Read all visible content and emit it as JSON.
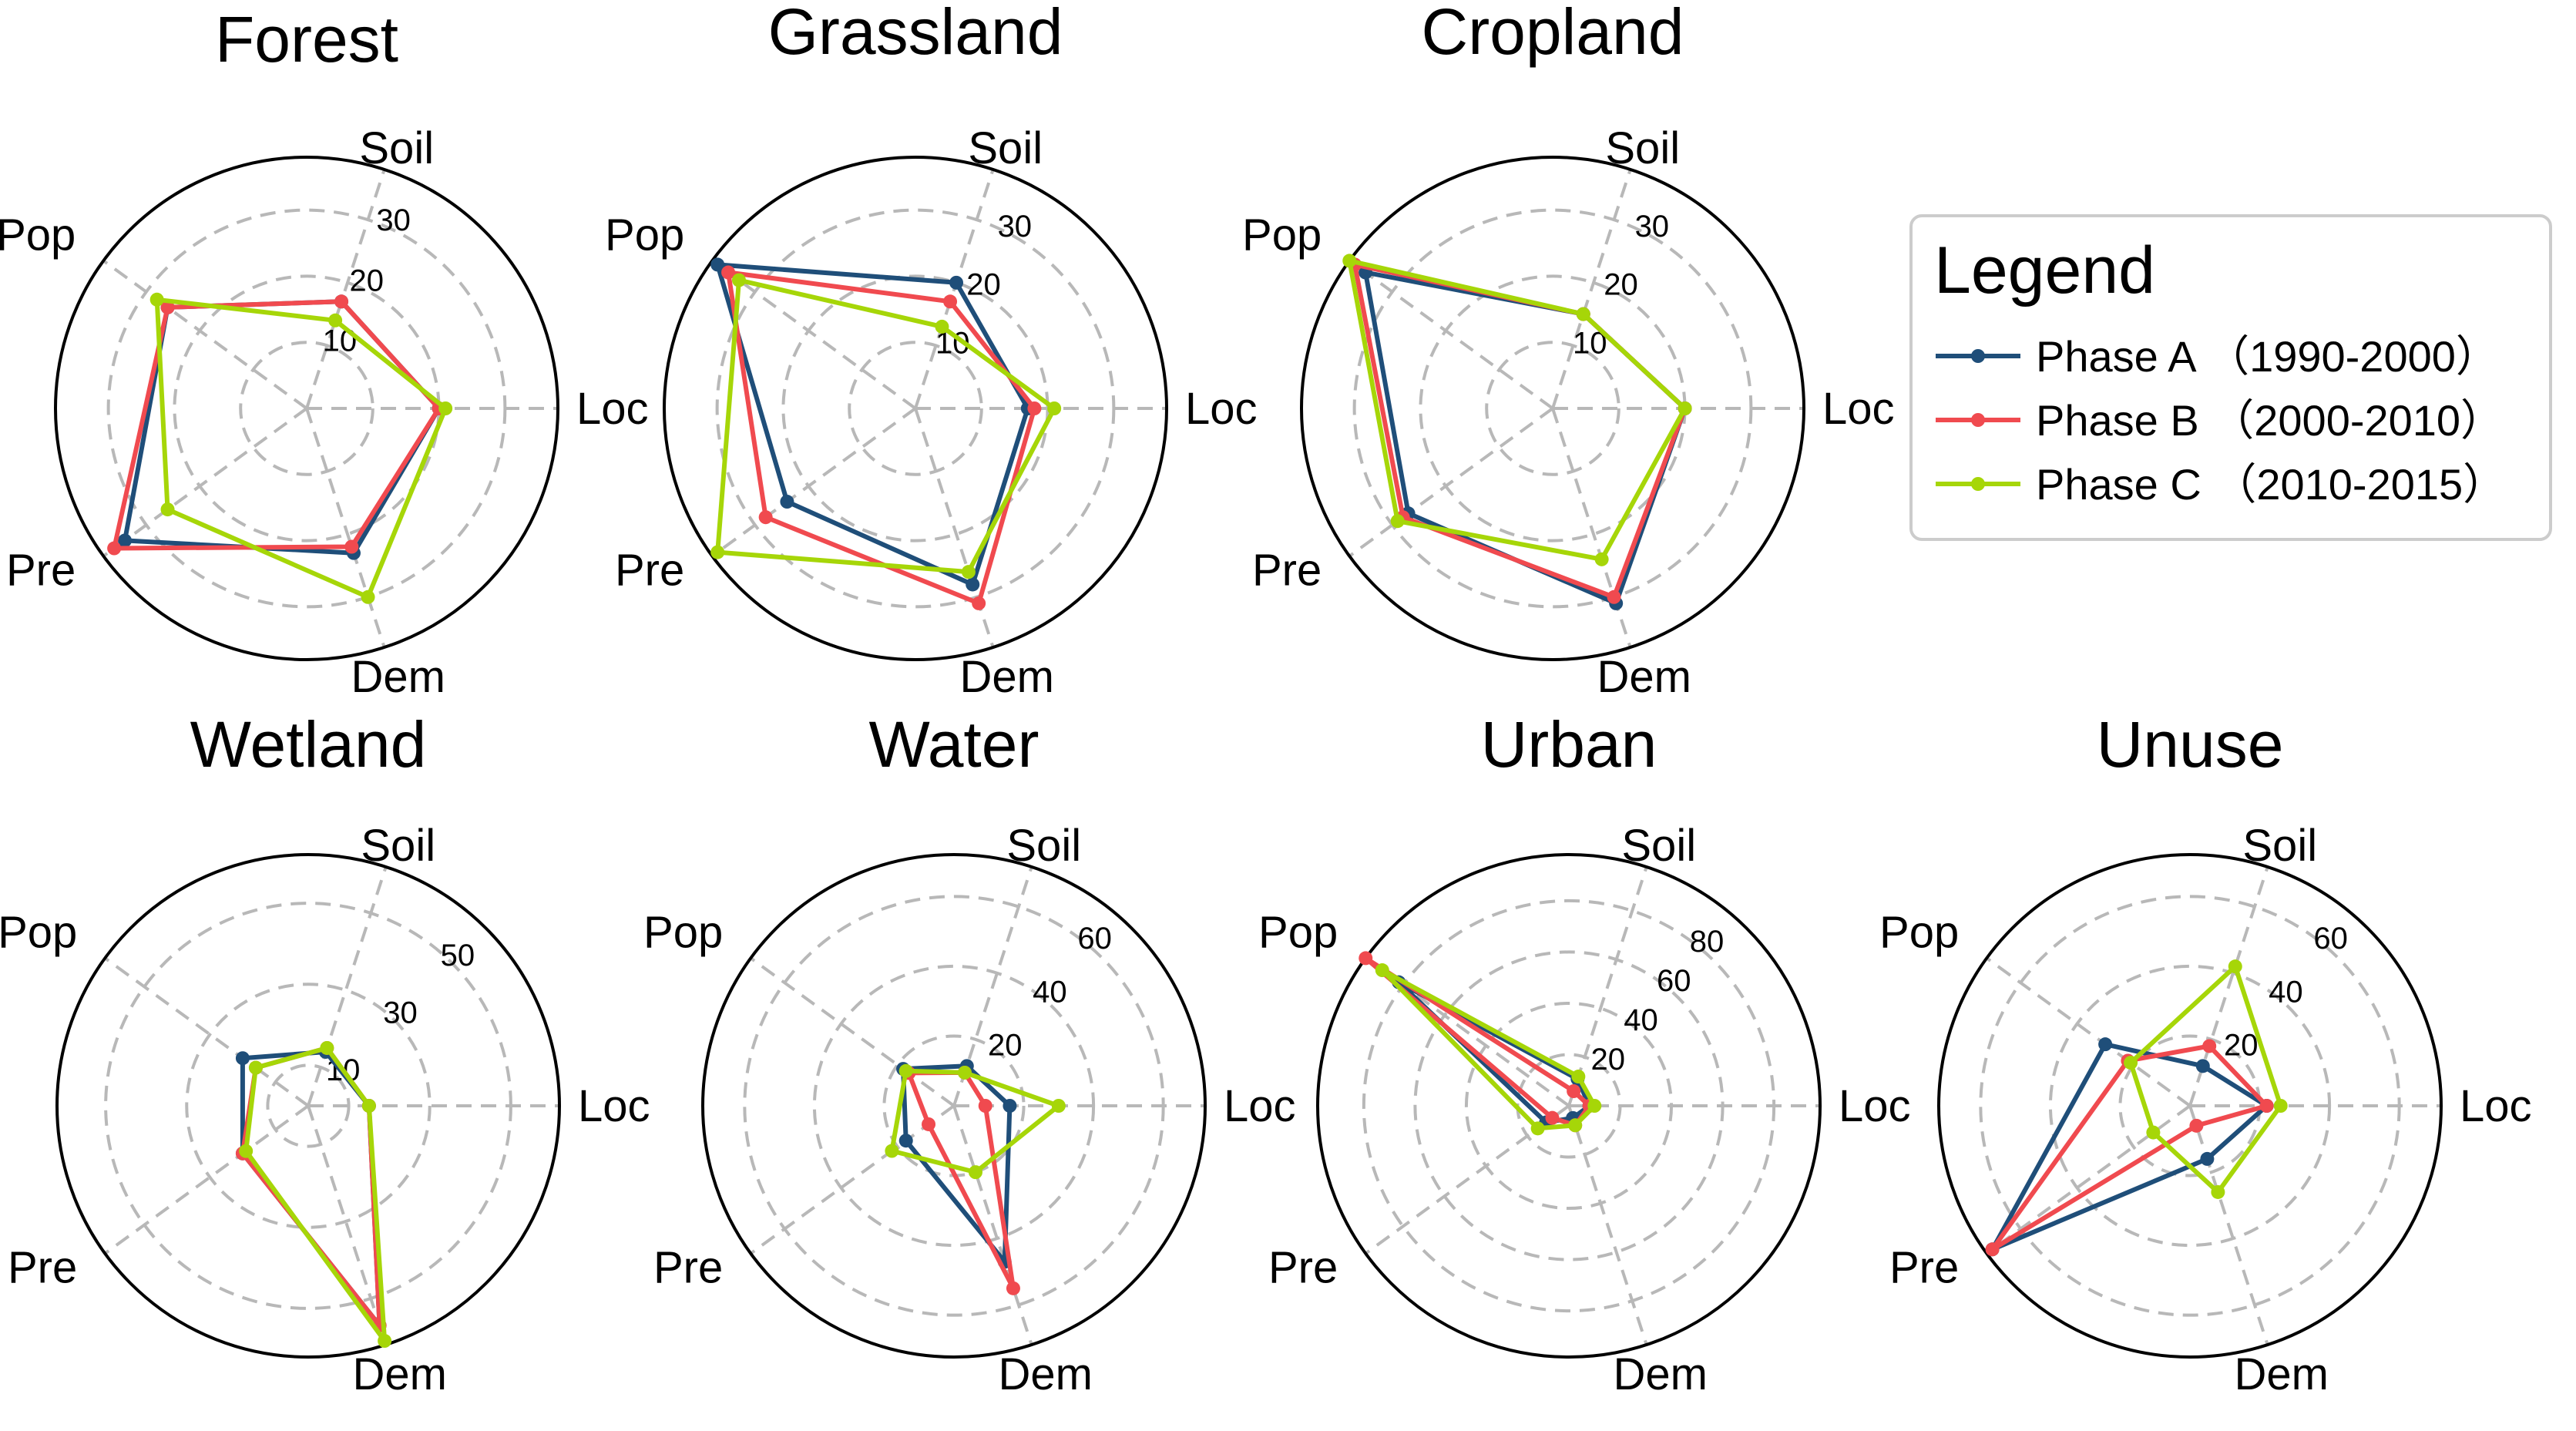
{
  "axes_order": [
    "Loc",
    "Soil",
    "Pop",
    "Pre",
    "Dem"
  ],
  "legend": {
    "title": "Legend",
    "entries": [
      {
        "label": "Phase A （1990-2000）",
        "color": "#1f4e79"
      },
      {
        "label": "Phase B （2000-2010）",
        "color": "#f04a4f"
      },
      {
        "label": "Phase C （2010-2015）",
        "color": "#a6d608"
      }
    ]
  },
  "chart_data": [
    {
      "type": "radar",
      "title": "Forest",
      "axes": [
        "Loc",
        "Soil",
        "Pop",
        "Pre",
        "Dem"
      ],
      "rmax": 38,
      "ticks": [
        10,
        20,
        30
      ],
      "series": [
        {
          "name": "Phase A （1990-2000）",
          "values": [
            20,
            17,
            26,
            34,
            23
          ]
        },
        {
          "name": "Phase B （2000-2010）",
          "values": [
            20,
            17,
            26,
            36,
            22
          ]
        },
        {
          "name": "Phase C （2010-2015）",
          "values": [
            21,
            14,
            28,
            26,
            30
          ]
        }
      ]
    },
    {
      "type": "radar",
      "title": "Grassland",
      "axes": [
        "Loc",
        "Soil",
        "Pop",
        "Pre",
        "Dem"
      ],
      "rmax": 38,
      "ticks": [
        10,
        20,
        30
      ],
      "series": [
        {
          "name": "Phase A （1990-2000）",
          "values": [
            17,
            20,
            37,
            24,
            28
          ]
        },
        {
          "name": "Phase B （2000-2010）",
          "values": [
            18,
            17,
            35,
            28,
            31
          ]
        },
        {
          "name": "Phase C （2010-2015）",
          "values": [
            21,
            13,
            33,
            37,
            26
          ]
        }
      ]
    },
    {
      "type": "radar",
      "title": "Cropland",
      "axes": [
        "Loc",
        "Soil",
        "Pop",
        "Pre",
        "Dem"
      ],
      "rmax": 38,
      "ticks": [
        10,
        20,
        30
      ],
      "series": [
        {
          "name": "Phase A （1990-2000）",
          "values": [
            20,
            15,
            35,
            27,
            31
          ]
        },
        {
          "name": "Phase B （2000-2010）",
          "values": [
            20,
            15,
            37,
            28,
            30
          ]
        },
        {
          "name": "Phase C （2010-2015）",
          "values": [
            20,
            15,
            38,
            29,
            24
          ]
        }
      ]
    },
    {
      "type": "radar",
      "title": "Wetland",
      "axes": [
        "Loc",
        "Soil",
        "Pop",
        "Pre",
        "Dem"
      ],
      "rmax": 62,
      "ticks": [
        10,
        30,
        50
      ],
      "series": [
        {
          "name": "Phase A （1990-2000）",
          "values": [
            15,
            14,
            20,
            20,
            57
          ]
        },
        {
          "name": "Phase B （2000-2010）",
          "values": [
            15,
            15,
            16,
            20,
            57
          ]
        },
        {
          "name": "Phase C （2010-2015）",
          "values": [
            15,
            15,
            16,
            19,
            61
          ]
        }
      ]
    },
    {
      "type": "radar",
      "title": "Water",
      "axes": [
        "Loc",
        "Soil",
        "Pop",
        "Pre",
        "Dem"
      ],
      "rmax": 72,
      "ticks": [
        20,
        40,
        60
      ],
      "series": [
        {
          "name": "Phase A （1990-2000）",
          "values": [
            16,
            12,
            18,
            17,
            47
          ]
        },
        {
          "name": "Phase B （2000-2010）",
          "values": [
            9,
            10,
            16,
            9,
            55
          ]
        },
        {
          "name": "Phase C （2010-2015）",
          "values": [
            30,
            10,
            17,
            22,
            20
          ]
        }
      ]
    },
    {
      "type": "radar",
      "title": "Urban",
      "axes": [
        "Loc",
        "Soil",
        "Pop",
        "Pre",
        "Dem"
      ],
      "rmax": 98,
      "ticks": [
        20,
        40,
        60,
        80
      ],
      "series": [
        {
          "name": "Phase A （1990-2000）",
          "values": [
            8,
            11,
            82,
            11,
            5
          ]
        },
        {
          "name": "Phase B （2000-2010）",
          "values": [
            8,
            6,
            98,
            8,
            8
          ]
        },
        {
          "name": "Phase C （2010-2015）",
          "values": [
            10,
            12,
            90,
            15,
            8
          ]
        }
      ]
    },
    {
      "type": "radar",
      "title": "Unuse",
      "axes": [
        "Loc",
        "Soil",
        "Pop",
        "Pre",
        "Dem"
      ],
      "rmax": 72,
      "ticks": [
        20,
        40,
        60
      ],
      "series": [
        {
          "name": "Phase A （1990-2000）",
          "values": [
            22,
            12,
            30,
            70,
            16
          ]
        },
        {
          "name": "Phase B （2000-2010）",
          "values": [
            22,
            18,
            22,
            70,
            6
          ]
        },
        {
          "name": "Phase C （2010-2015）",
          "values": [
            26,
            42,
            21,
            13,
            26
          ]
        }
      ]
    }
  ]
}
